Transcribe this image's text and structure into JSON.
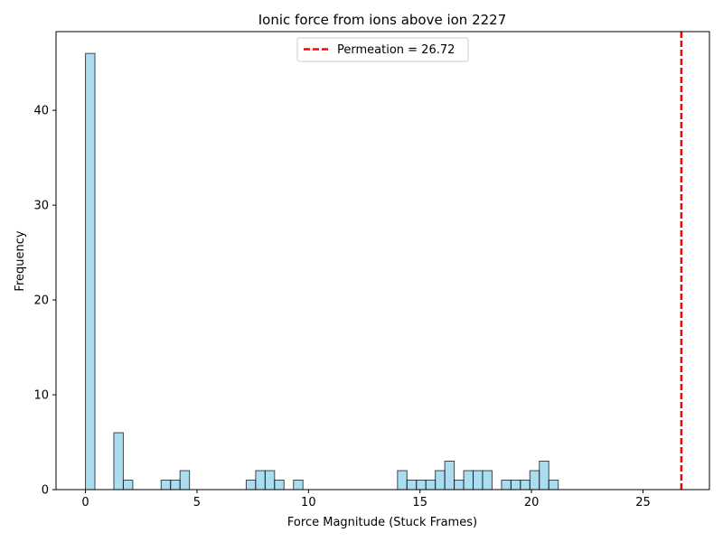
{
  "chart_data": {
    "type": "bar",
    "title": "Ionic force from ions above ion 2227",
    "xlabel": "Force Magnitude (Stuck Frames)",
    "ylabel": "Frequency",
    "xlim": [
      -1.32,
      27.98
    ],
    "ylim": [
      0,
      48.3
    ],
    "xticks": [
      0,
      5,
      10,
      15,
      20,
      25
    ],
    "yticks": [
      0,
      10,
      20,
      30,
      40
    ],
    "bin_width": 0.424,
    "bins": [
      {
        "x": 0.212,
        "count": 46
      },
      {
        "x": 1.484,
        "count": 6
      },
      {
        "x": 1.908,
        "count": 1
      },
      {
        "x": 3.604,
        "count": 1
      },
      {
        "x": 4.028,
        "count": 1
      },
      {
        "x": 4.452,
        "count": 2
      },
      {
        "x": 7.42,
        "count": 1
      },
      {
        "x": 7.844,
        "count": 2
      },
      {
        "x": 8.268,
        "count": 2
      },
      {
        "x": 8.692,
        "count": 1
      },
      {
        "x": 9.54,
        "count": 1
      },
      {
        "x": 14.204,
        "count": 2
      },
      {
        "x": 14.628,
        "count": 1
      },
      {
        "x": 15.052,
        "count": 1
      },
      {
        "x": 15.476,
        "count": 1
      },
      {
        "x": 15.9,
        "count": 2
      },
      {
        "x": 16.324,
        "count": 3
      },
      {
        "x": 16.748,
        "count": 1
      },
      {
        "x": 17.172,
        "count": 2
      },
      {
        "x": 17.596,
        "count": 2
      },
      {
        "x": 18.02,
        "count": 2
      },
      {
        "x": 18.868,
        "count": 1
      },
      {
        "x": 19.292,
        "count": 1
      },
      {
        "x": 19.716,
        "count": 1
      },
      {
        "x": 20.14,
        "count": 2
      },
      {
        "x": 20.564,
        "count": 3
      },
      {
        "x": 20.988,
        "count": 1
      }
    ],
    "vline": {
      "x": 26.72,
      "label": "Permeation = 26.72",
      "color": "#ff0000",
      "style": "dashed"
    },
    "bar_color": "#87ceeb",
    "bar_edge_color": "#000000",
    "legend_position": "top-center",
    "grid": false
  }
}
